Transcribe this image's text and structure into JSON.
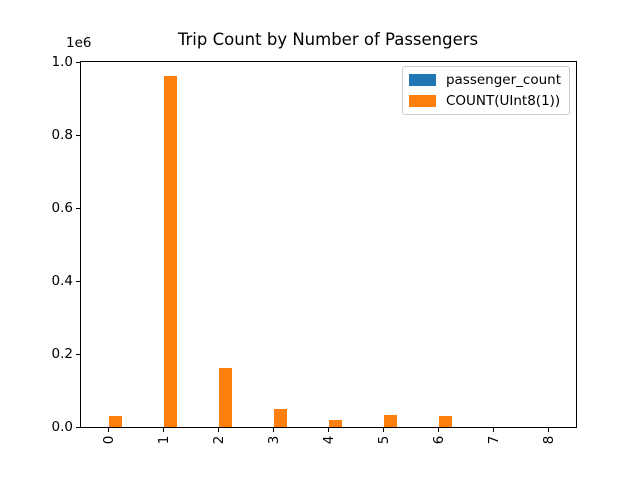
{
  "chart_data": {
    "type": "bar",
    "title": "Trip Count by Number of Passengers",
    "categories": [
      "0",
      "1",
      "2",
      "3",
      "4",
      "5",
      "6",
      "7",
      "8"
    ],
    "series": [
      {
        "name": "passenger_count",
        "color": "#1f77b4",
        "values": [
          0,
          1,
          2,
          3,
          4,
          5,
          6,
          7,
          8
        ]
      },
      {
        "name": "COUNT(UInt8(1))",
        "color": "#ff7f0e",
        "values": [
          29000,
          962000,
          162000,
          48000,
          20000,
          34000,
          29000,
          0,
          0
        ]
      }
    ],
    "xlabel": "",
    "ylabel": "",
    "ylim": [
      0,
      1000000
    ],
    "y_ticks": [
      0,
      200000,
      400000,
      600000,
      800000,
      1000000
    ],
    "y_tick_labels": [
      "0.0",
      "0.2",
      "0.4",
      "0.6",
      "0.8",
      "1.0"
    ],
    "y_offset_label": "1e6",
    "x_tick_rotation": 90,
    "bar_group_width": 0.5,
    "grid": false,
    "legend": {
      "position": "upper right"
    },
    "colors": {
      "axis": "#000000",
      "background": "#ffffff",
      "legend_border": "#cccccc",
      "series_blue": "#1f77b4",
      "series_orange": "#ff7f0e"
    }
  }
}
